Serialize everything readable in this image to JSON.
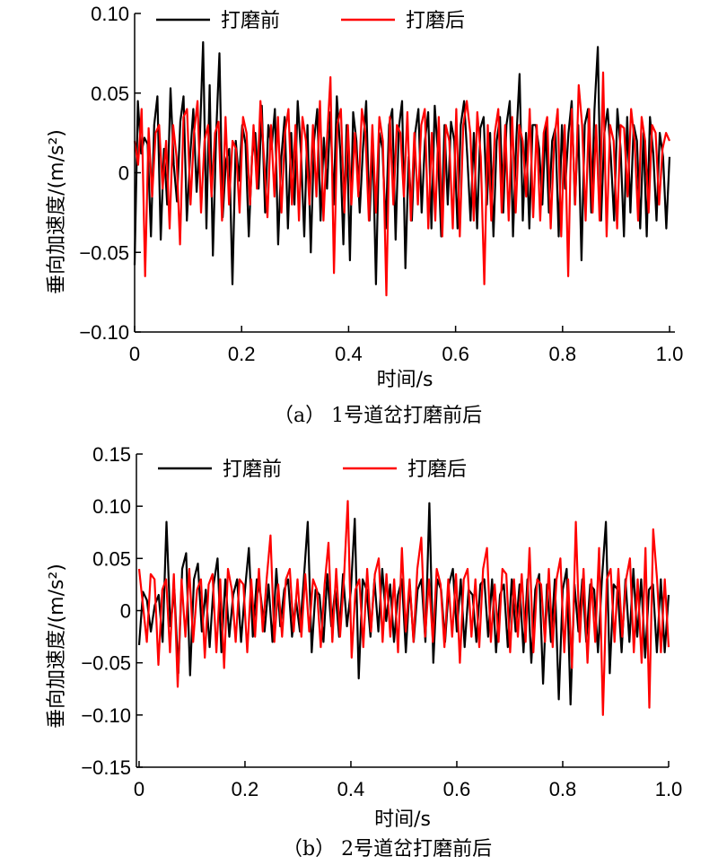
{
  "chart_data": [
    {
      "type": "line",
      "caption": "（a） 1号道岔打磨前后",
      "xlabel": "时间/s",
      "ylabel": "垂向加速度/(m/s²)",
      "xlim": [
        0,
        1.01
      ],
      "ylim": [
        -0.1,
        0.1
      ],
      "xticks": [
        "0",
        "0.2",
        "0.4",
        "0.6",
        "0.8",
        "1.0"
      ],
      "yticks": [
        "−0.10",
        "−0.05",
        "0",
        "0.05",
        "0.10"
      ],
      "legend_position": "top",
      "series": [
        {
          "name": "打磨前",
          "color": "#000000",
          "values": [
            -0.058,
            0.045,
            0.012,
            0.022,
            0.018,
            -0.04,
            0.03,
            0.048,
            -0.042,
            0.015,
            -0.02,
            0.053,
            0.005,
            -0.018,
            0.032,
            0.048,
            -0.03,
            0.01,
            0.04,
            -0.012,
            0.022,
            0.082,
            -0.035,
            0.055,
            -0.052,
            0.025,
            0.075,
            -0.028,
            0.008,
            0.015,
            -0.07,
            0.02,
            -0.005,
            0.03,
            0.018,
            -0.04,
            0.01,
            0.025,
            -0.01,
            0.042,
            -0.025,
            0.03,
            0.015,
            0.04,
            -0.045,
            0.01,
            0.035,
            -0.035,
            0.025,
            -0.02,
            0.045,
            0.012,
            -0.04,
            0.03,
            -0.05,
            0.02,
            0.04,
            -0.03,
            0.022,
            -0.01,
            0.038,
            -0.02,
            0.048,
            0.015,
            -0.045,
            0.03,
            -0.055,
            0.038,
            0.02,
            -0.025,
            0.015,
            0.045,
            -0.03,
            0.02,
            -0.07,
            0.025,
            0.015,
            -0.035,
            0.03,
            0.04,
            -0.042,
            0.028,
            0.045,
            -0.06,
            0.01,
            -0.03,
            0.025,
            0.04,
            -0.025,
            0.02,
            0.038,
            -0.035,
            0.042,
            0.012,
            -0.04,
            0.03,
            -0.02,
            0.032,
            0.02,
            -0.035,
            0.03,
            0.045,
            0.01,
            -0.03,
            0.025,
            -0.035,
            0.028,
            0.035,
            -0.02,
            0.025,
            -0.04,
            0.02,
            0.035,
            -0.025,
            0.03,
            0.045,
            -0.04,
            0.02,
            0.062,
            -0.03,
            0.025,
            -0.035,
            0.03,
            0.03,
            0.015,
            -0.02,
            0.03,
            -0.025,
            0.02,
            0.028,
            -0.04,
            0.03,
            -0.01,
            0.025,
            0.045,
            -0.02,
            0.03,
            -0.055,
            0.03,
            0.04,
            -0.025,
            0.04,
            0.079,
            -0.03,
            0.025,
            0.04,
            0.01,
            -0.03,
            0.04,
            0.015,
            -0.04,
            0.035,
            -0.025,
            0.03,
            0.02,
            -0.035,
            0.025,
            -0.04,
            0.035,
            0.012,
            -0.03,
            0.025,
            0.01,
            -0.035,
            0.01
          ]
        },
        {
          "name": "打磨后",
          "color": "#ff0000",
          "values": [
            0.02,
            0.005,
            0.04,
            -0.065,
            0.028,
            -0.015,
            0.025,
            0.03,
            -0.01,
            0.02,
            -0.035,
            0.03,
            0.01,
            -0.045,
            0.035,
            0.04,
            -0.02,
            0.025,
            0.045,
            -0.025,
            0.02,
            0.03,
            -0.015,
            0.025,
            0.032,
            -0.03,
            0.035,
            -0.02,
            0.02,
            0.015,
            -0.025,
            0.035,
            0.025,
            -0.02,
            0.03,
            -0.01,
            0.045,
            0.01,
            -0.028,
            0.03,
            -0.015,
            0.035,
            -0.025,
            0.025,
            0.04,
            -0.02,
            0.03,
            -0.03,
            0.035,
            0.02,
            -0.02,
            0.03,
            -0.015,
            0.045,
            -0.03,
            0.02,
            0.06,
            -0.063,
            0.03,
            0.04,
            -0.025,
            0.03,
            -0.02,
            0.025,
            -0.015,
            0.04,
            0.025,
            -0.03,
            0.03,
            -0.025,
            0.035,
            0.02,
            -0.077,
            0.035,
            -0.02,
            0.03,
            0.025,
            -0.015,
            0.038,
            -0.03,
            0.025,
            -0.02,
            0.03,
            0.04,
            -0.035,
            0.025,
            -0.03,
            0.035,
            -0.04,
            0.03,
            0.02,
            -0.035,
            0.04,
            -0.04,
            0.03,
            0.045,
            0.025,
            -0.03,
            0.038,
            0.01,
            -0.07,
            0.03,
            -0.03,
            0.025,
            0.04,
            -0.025,
            0.03,
            -0.03,
            0.035,
            -0.025,
            0.03,
            0.02,
            -0.015,
            0.04,
            -0.028,
            0.03,
            -0.03,
            0.025,
            0.035,
            -0.035,
            0.02,
            0.04,
            -0.04,
            0.03,
            -0.065,
            0.04,
            -0.02,
            0.055,
            0.03,
            -0.03,
            0.04,
            -0.025,
            0.03,
            -0.03,
            0.063,
            -0.04,
            0.03,
            0.02,
            -0.035,
            0.03,
            0.028,
            -0.015,
            0.04,
            0.02,
            -0.03,
            0.035,
            0.02,
            -0.025,
            0.03,
            0.025,
            -0.02,
            0.015,
            0.025,
            0.02
          ]
        }
      ]
    },
    {
      "type": "line",
      "caption": "（b） 2号道岔打磨前后",
      "xlabel": "时间/s",
      "ylabel": "垂向加速度/(m/s²)",
      "xlim": [
        -0.005,
        1.0
      ],
      "ylim": [
        -0.15,
        0.15
      ],
      "xticks": [
        "0",
        "0.2",
        "0.4",
        "0.6",
        "0.8",
        "1.0"
      ],
      "yticks": [
        "−0.15",
        "−0.10",
        "−0.05",
        "0",
        "0.05",
        "0.10",
        "0.15"
      ],
      "legend_position": "top",
      "series": [
        {
          "name": "打磨前",
          "color": "#000000",
          "values": [
            -0.033,
            0.018,
            0.01,
            -0.02,
            0.005,
            0.015,
            -0.03,
            0.085,
            -0.015,
            0.02,
            -0.06,
            0.04,
            0.055,
            -0.062,
            0.03,
            0.045,
            -0.02,
            0.02,
            -0.035,
            0.025,
            0.05,
            -0.04,
            0.03,
            -0.025,
            0.015,
            0.03,
            -0.03,
            0.02,
            0.06,
            -0.025,
            0.03,
            0.015,
            -0.02,
            0.025,
            -0.03,
            0.04,
            -0.015,
            0.02,
            0.03,
            -0.025,
            0.01,
            -0.02,
            0.03,
            0.085,
            -0.04,
            0.02,
            0.015,
            -0.03,
            0.035,
            -0.015,
            0.02,
            -0.025,
            0.035,
            -0.015,
            0.02,
            0.088,
            -0.065,
            0.03,
            0.02,
            -0.025,
            0.03,
            -0.02,
            0.04,
            -0.01,
            0.025,
            -0.03,
            0.015,
            0.03,
            -0.04,
            0.025,
            -0.03,
            0.02,
            0.03,
            -0.03,
            0.103,
            -0.05,
            0.03,
            0.02,
            -0.03,
            0.025,
            0.04,
            -0.02,
            0.03,
            -0.035,
            0.02,
            0.015,
            -0.03,
            0.025,
            0.03,
            -0.025,
            0.03,
            -0.04,
            0.015,
            0.025,
            -0.035,
            0.03,
            -0.02,
            0.025,
            -0.04,
            0.03,
            -0.05,
            0.02,
            0.035,
            -0.07,
            0.025,
            -0.03,
            0.03,
            -0.085,
            0.02,
            0.04,
            -0.09,
            0.025,
            -0.02,
            0.03,
            -0.03,
            0.025,
            0.02,
            -0.04,
            0.03,
            0.085,
            -0.06,
            0.025,
            0.02,
            -0.04,
            0.03,
            -0.03,
            0.04,
            -0.025,
            0.03,
            -0.045,
            0.02,
            0.025,
            -0.04,
            0.03,
            -0.04,
            0.015
          ]
        },
        {
          "name": "打磨后",
          "color": "#ff0000",
          "values": [
            0.04,
            0.005,
            -0.03,
            0.035,
            0.03,
            -0.052,
            0.02,
            0.03,
            -0.04,
            0.035,
            -0.073,
            0.03,
            -0.025,
            0.04,
            -0.03,
            0.02,
            0.03,
            -0.045,
            0.025,
            0.035,
            -0.04,
            0.03,
            -0.055,
            0.04,
            0.02,
            -0.03,
            0.03,
            0.025,
            -0.04,
            0.03,
            -0.025,
            0.04,
            -0.02,
            0.03,
            0.072,
            -0.03,
            0.025,
            -0.025,
            0.03,
            0.04,
            -0.02,
            0.03,
            -0.025,
            0.035,
            -0.02,
            0.03,
            0.02,
            -0.035,
            0.025,
            0.065,
            -0.03,
            0.04,
            -0.025,
            0.03,
            0.105,
            -0.045,
            0.02,
            0.03,
            -0.035,
            0.04,
            -0.02,
            0.035,
            0.05,
            -0.03,
            0.035,
            -0.025,
            0.03,
            -0.04,
            0.06,
            -0.02,
            0.03,
            -0.03,
            0.04,
            0.07,
            -0.025,
            0.03,
            -0.03,
            0.04,
            0.025,
            -0.035,
            0.03,
            -0.025,
            0.035,
            -0.05,
            0.03,
            0.04,
            -0.025,
            0.03,
            -0.035,
            0.04,
            0.06,
            -0.03,
            0.025,
            -0.03,
            0.04,
            0.035,
            -0.04,
            0.03,
            -0.025,
            0.035,
            -0.03,
            0.06,
            -0.04,
            0.03,
            0.025,
            -0.03,
            0.04,
            -0.035,
            0.03,
            0.05,
            -0.04,
            0.03,
            -0.055,
            0.085,
            -0.03,
            0.04,
            -0.05,
            0.03,
            -0.03,
            0.06,
            -0.1,
            0.03,
            0.04,
            -0.03,
            0.04,
            -0.025,
            0.03,
            0.05,
            -0.04,
            0.03,
            -0.05,
            0.06,
            -0.093,
            0.078,
            0.03,
            -0.04,
            0.03,
            -0.035
          ]
        }
      ]
    }
  ]
}
